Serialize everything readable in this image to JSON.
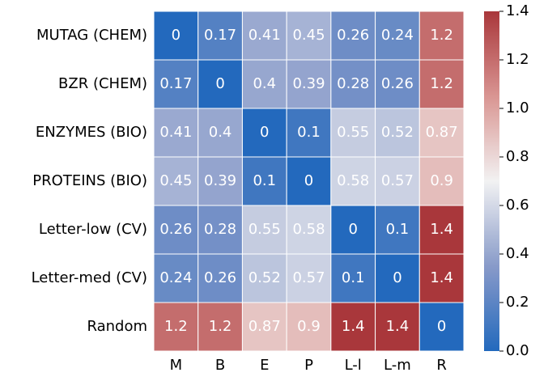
{
  "chart_data": {
    "type": "heatmap",
    "rows": [
      "MUTAG (CHEM)",
      "BZR (CHEM)",
      "ENZYMES (BIO)",
      "PROTEINS (BIO)",
      "Letter-low (CV)",
      "Letter-med (CV)",
      "Random"
    ],
    "columns": [
      "M",
      "B",
      "E",
      "P",
      "L-l",
      "L-m",
      "R"
    ],
    "values": [
      [
        0,
        0.17,
        0.41,
        0.45,
        0.26,
        0.24,
        1.2
      ],
      [
        0.17,
        0,
        0.4,
        0.39,
        0.28,
        0.26,
        1.2
      ],
      [
        0.41,
        0.4,
        0,
        0.1,
        0.55,
        0.52,
        0.87
      ],
      [
        0.45,
        0.39,
        0.1,
        0,
        0.58,
        0.57,
        0.9
      ],
      [
        0.26,
        0.28,
        0.55,
        0.58,
        0,
        0.1,
        1.4
      ],
      [
        0.24,
        0.26,
        0.52,
        0.57,
        0.1,
        0,
        1.4
      ],
      [
        1.2,
        1.2,
        0.87,
        0.9,
        1.4,
        1.4,
        0
      ]
    ],
    "clim": [
      0,
      1.4
    ],
    "colorbar_ticks": [
      {
        "value": 0,
        "label": "0.0"
      },
      {
        "value": 0.2,
        "label": "0.2"
      },
      {
        "value": 0.4,
        "label": "0.4"
      },
      {
        "value": 0.6,
        "label": "0.6"
      },
      {
        "value": 0.8,
        "label": "0.8"
      },
      {
        "value": 1,
        "label": "1.0"
      },
      {
        "value": 1.2,
        "label": "1.2"
      },
      {
        "value": 1.4,
        "label": "1.4"
      }
    ],
    "colormap": [
      "#2369bd",
      "#889ac9",
      "#f2f2f2",
      "#d99592",
      "#a9373b"
    ]
  }
}
